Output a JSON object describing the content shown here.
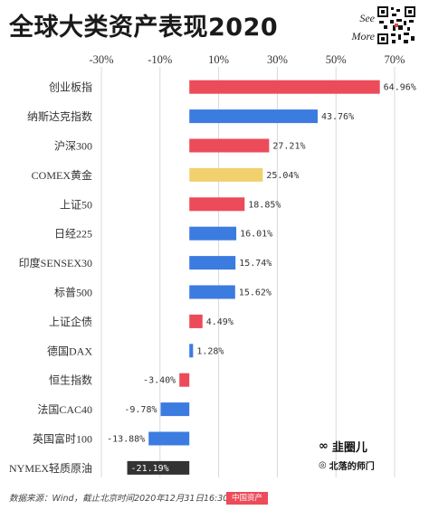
{
  "title": "全球大类资产表现2020",
  "see_more": {
    "line1": "See",
    "line2": "More"
  },
  "footer": {
    "source": "数据来源：Wind，截止北京时间2020年12月31日16:30",
    "legend_label": "中国资产"
  },
  "watermark": {
    "line1": "韭圈儿",
    "line2": "北落的师门"
  },
  "colors": {
    "china": "#ec4b5a",
    "global": "#3c7be0",
    "gold": "#f3d06e",
    "oil": "#333333",
    "grid": "#d9d9d9"
  },
  "chart_data": {
    "type": "bar",
    "orientation": "horizontal",
    "title": "全球大类资产表现2020",
    "xlim": [
      -30,
      70
    ],
    "x_ticks": [
      "-30%",
      "-10%",
      "10%",
      "30%",
      "50%",
      "70%"
    ],
    "x_tick_values": [
      -30,
      -10,
      10,
      30,
      50,
      70
    ],
    "grid": true,
    "categories": [
      "创业板指",
      "纳斯达克指数",
      "沪深300",
      "COMEX黄金",
      "上证50",
      "日经225",
      "印度SENSEX30",
      "标普500",
      "上证企债",
      "德国DAX",
      "恒生指数",
      "法国CAC40",
      "英国富时100",
      "NYMEX轻质原油"
    ],
    "values": [
      64.96,
      43.76,
      27.21,
      25.04,
      18.85,
      16.01,
      15.74,
      15.62,
      4.49,
      1.28,
      -3.4,
      -9.78,
      -13.88,
      -21.19
    ],
    "value_labels": [
      "64.96%",
      "43.76%",
      "27.21%",
      "25.04%",
      "18.85%",
      "16.01%",
      "15.74%",
      "15.62%",
      "4.49%",
      "1.28%",
      "-3.40%",
      "-9.78%",
      "-13.88%",
      "-21.19%"
    ],
    "bar_colors": [
      "china",
      "global",
      "china",
      "gold",
      "china",
      "global",
      "global",
      "global",
      "china",
      "global",
      "china",
      "global",
      "global",
      "oil"
    ]
  }
}
